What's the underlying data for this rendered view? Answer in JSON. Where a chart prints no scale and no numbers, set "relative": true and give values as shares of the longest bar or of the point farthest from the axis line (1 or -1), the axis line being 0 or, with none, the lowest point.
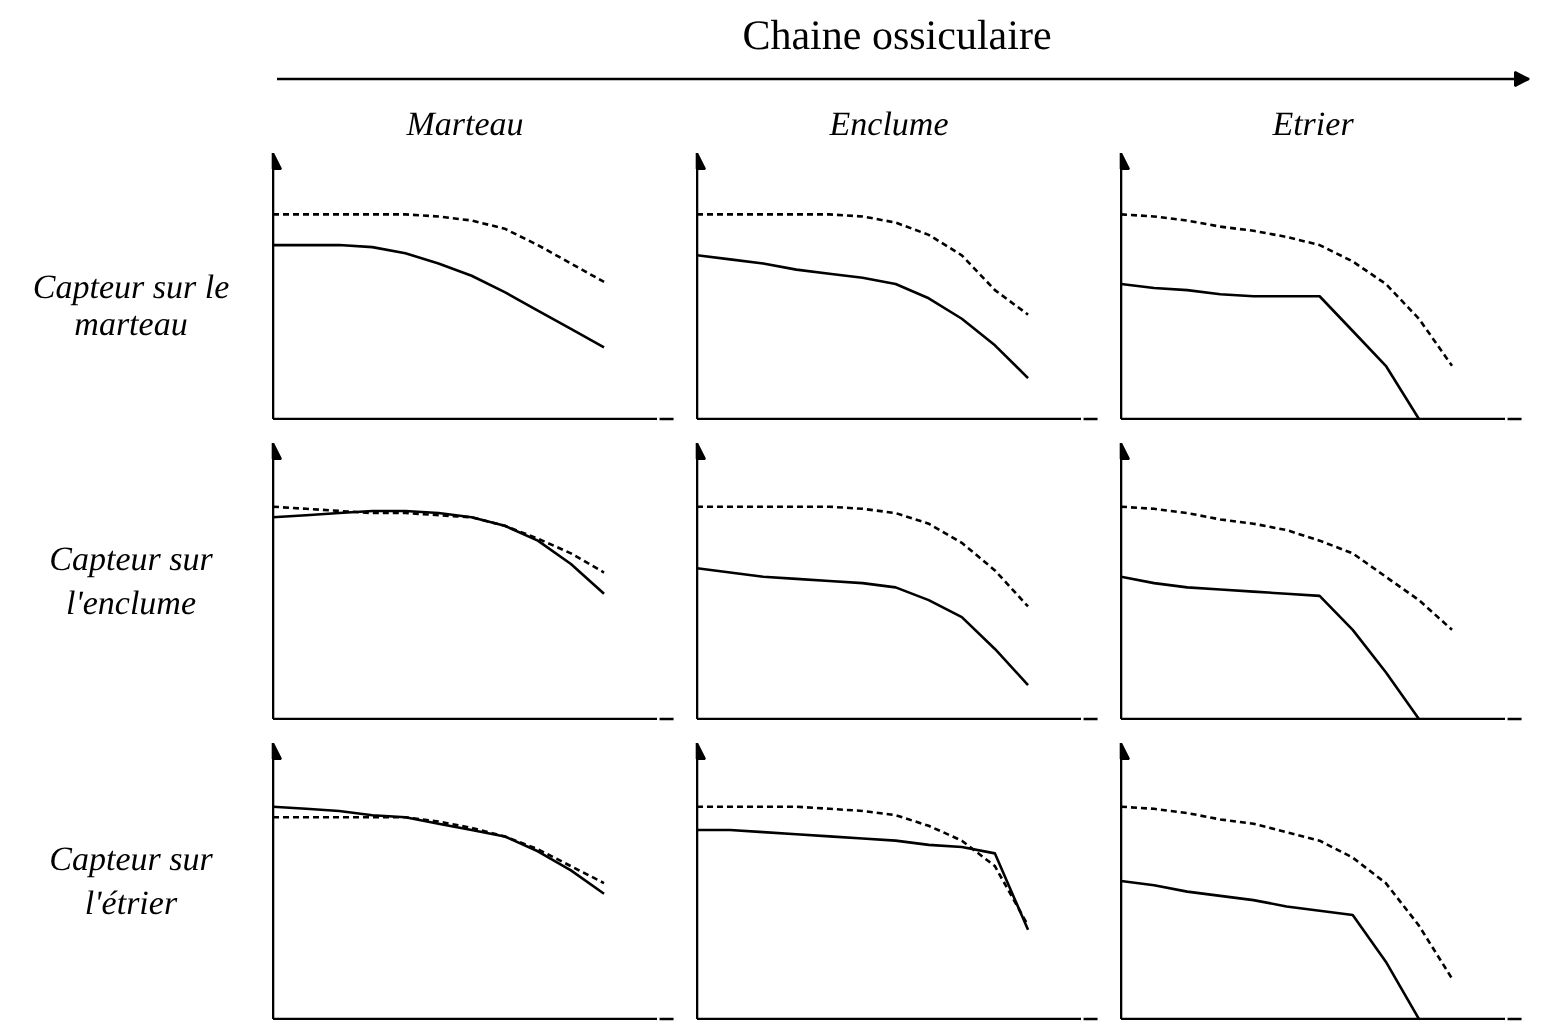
{
  "chart_data": [
    {
      "type": "line",
      "relative": true,
      "title": "Marteau",
      "ylabel": "Capteur sur le marteau",
      "annotations": [
        "Chaine ossiculaire"
      ],
      "categories": [
        null,
        null,
        null,
        null,
        null,
        null,
        null,
        null,
        null,
        null,
        null,
        null
      ],
      "tick_labels": false,
      "grid": false,
      "series": [
        {
          "color": "#000000",
          "line_style": "solid",
          "values": [
            0.85,
            0.85,
            0.85,
            0.84,
            0.81,
            0.76,
            0.7,
            0.62,
            0.53,
            0.44,
            0.35,
            null
          ]
        },
        {
          "color": "#000000",
          "line_style": "dashed",
          "values": [
            1,
            1,
            1,
            1,
            1,
            0.99,
            0.97,
            0.93,
            0.85,
            0.76,
            0.67,
            null
          ]
        }
      ]
    },
    {
      "type": "line",
      "relative": true,
      "title": "Enclume",
      "categories": [
        null,
        null,
        null,
        null,
        null,
        null,
        null,
        null,
        null,
        null,
        null,
        null
      ],
      "tick_labels": false,
      "grid": false,
      "series": [
        {
          "color": "#000000",
          "line_style": "solid",
          "values": [
            0.8,
            0.78,
            0.76,
            0.73,
            0.71,
            0.69,
            0.66,
            0.59,
            0.49,
            0.36,
            0.2,
            null
          ]
        },
        {
          "color": "#000000",
          "line_style": "dashed",
          "values": [
            1,
            1,
            1,
            1,
            1,
            0.99,
            0.96,
            0.9,
            0.8,
            0.63,
            0.51,
            null
          ]
        }
      ]
    },
    {
      "type": "line",
      "relative": true,
      "title": "Etrier",
      "categories": [
        null,
        null,
        null,
        null,
        null,
        null,
        null,
        null,
        null,
        null,
        null,
        null
      ],
      "tick_labels": false,
      "grid": false,
      "series": [
        {
          "color": "#000000",
          "line_style": "solid",
          "values": [
            0.66,
            0.64,
            0.63,
            0.61,
            0.6,
            0.6,
            0.6,
            0.43,
            0.26,
            0,
            null,
            null
          ]
        },
        {
          "color": "#000000",
          "line_style": "dashed",
          "values": [
            1,
            0.99,
            0.97,
            0.94,
            0.92,
            0.89,
            0.85,
            0.77,
            0.66,
            0.49,
            0.26,
            null
          ]
        }
      ]
    },
    {
      "type": "line",
      "relative": true,
      "ylabel": "Capteur sur l'enclume",
      "categories": [
        null,
        null,
        null,
        null,
        null,
        null,
        null,
        null,
        null,
        null,
        null,
        null
      ],
      "tick_labels": false,
      "grid": false,
      "series": [
        {
          "color": "#000000",
          "line_style": "solid",
          "values": [
            0.95,
            0.96,
            0.97,
            0.98,
            0.98,
            0.97,
            0.95,
            0.91,
            0.84,
            0.73,
            0.59,
            null
          ]
        },
        {
          "color": "#000000",
          "line_style": "dashed",
          "values": [
            1,
            0.99,
            0.98,
            0.97,
            0.97,
            0.96,
            0.95,
            0.91,
            0.85,
            0.78,
            0.69,
            null
          ]
        }
      ]
    },
    {
      "type": "line",
      "relative": true,
      "categories": [
        null,
        null,
        null,
        null,
        null,
        null,
        null,
        null,
        null,
        null,
        null,
        null
      ],
      "tick_labels": false,
      "grid": false,
      "series": [
        {
          "color": "#000000",
          "line_style": "solid",
          "values": [
            0.71,
            0.69,
            0.67,
            0.66,
            0.65,
            0.64,
            0.62,
            0.56,
            0.48,
            0.33,
            0.16,
            null
          ]
        },
        {
          "color": "#000000",
          "line_style": "dashed",
          "values": [
            1,
            1,
            1,
            1,
            1,
            0.99,
            0.97,
            0.92,
            0.83,
            0.7,
            0.53,
            null
          ]
        }
      ]
    },
    {
      "type": "line",
      "relative": true,
      "categories": [
        null,
        null,
        null,
        null,
        null,
        null,
        null,
        null,
        null,
        null,
        null,
        null
      ],
      "tick_labels": false,
      "grid": false,
      "series": [
        {
          "color": "#000000",
          "line_style": "solid",
          "values": [
            0.67,
            0.64,
            0.62,
            0.61,
            0.6,
            0.59,
            0.58,
            0.42,
            0.22,
            0,
            null,
            null
          ]
        },
        {
          "color": "#000000",
          "line_style": "dashed",
          "values": [
            1,
            0.99,
            0.97,
            0.94,
            0.92,
            0.89,
            0.84,
            0.78,
            0.67,
            0.56,
            0.42,
            null
          ]
        }
      ]
    },
    {
      "type": "line",
      "relative": true,
      "ylabel": "Capteur sur l'étrier",
      "categories": [
        null,
        null,
        null,
        null,
        null,
        null,
        null,
        null,
        null,
        null,
        null,
        null
      ],
      "tick_labels": false,
      "grid": false,
      "series": [
        {
          "color": "#000000",
          "line_style": "solid",
          "values": [
            1,
            0.99,
            0.98,
            0.96,
            0.95,
            0.92,
            0.89,
            0.86,
            0.79,
            0.7,
            0.59,
            null
          ]
        },
        {
          "color": "#000000",
          "line_style": "dashed",
          "values": [
            0.95,
            0.95,
            0.95,
            0.95,
            0.95,
            0.93,
            0.9,
            0.86,
            0.8,
            0.72,
            0.64,
            null
          ]
        }
      ]
    },
    {
      "type": "line",
      "relative": true,
      "categories": [
        null,
        null,
        null,
        null,
        null,
        null,
        null,
        null,
        null,
        null,
        null,
        null
      ],
      "tick_labels": false,
      "grid": false,
      "series": [
        {
          "color": "#000000",
          "line_style": "solid",
          "values": [
            0.89,
            0.89,
            0.88,
            0.87,
            0.86,
            0.85,
            0.84,
            0.82,
            0.81,
            0.78,
            0.42,
            null
          ]
        },
        {
          "color": "#000000",
          "line_style": "dashed",
          "values": [
            1,
            1,
            1,
            1,
            0.99,
            0.98,
            0.96,
            0.91,
            0.84,
            0.72,
            0.44,
            null
          ]
        }
      ]
    },
    {
      "type": "line",
      "relative": true,
      "categories": [
        null,
        null,
        null,
        null,
        null,
        null,
        null,
        null,
        null,
        null,
        null,
        null
      ],
      "tick_labels": false,
      "grid": false,
      "series": [
        {
          "color": "#000000",
          "line_style": "solid",
          "values": [
            0.65,
            0.63,
            0.6,
            0.58,
            0.56,
            0.53,
            0.51,
            0.49,
            0.27,
            0,
            null,
            null
          ]
        },
        {
          "color": "#000000",
          "line_style": "dashed",
          "values": [
            1,
            0.99,
            0.97,
            0.94,
            0.92,
            0.88,
            0.84,
            0.76,
            0.64,
            0.44,
            0.19,
            null
          ]
        }
      ]
    }
  ]
}
